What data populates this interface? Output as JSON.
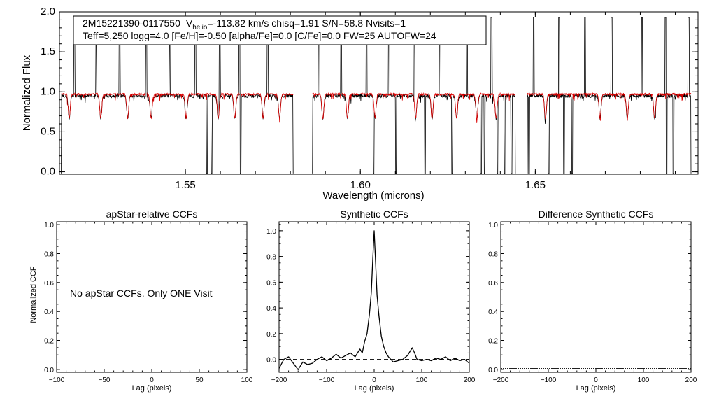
{
  "chart_data": [
    {
      "type": "line",
      "id": "spectrum",
      "annotation": {
        "line1_star": "2M15221390-0117550",
        "line1_vsym": "V",
        "line1_vsub": "helio",
        "line1_rest": "=-113.82 km/s  chisq=1.91  S/N=58.8  Nvisits=1",
        "line2": "Teff=5,250 logg=4.0 [Fe/H]=-0.50 [alpha/Fe]=0.0 [C/Fe]=0.0 FW=25 AUTOFW=24"
      },
      "xlabel": "Wavelength (microns)",
      "ylabel": "Normalized Flux",
      "xlim": [
        1.514,
        1.6965
      ],
      "ylim": [
        -0.03,
        2.0
      ],
      "xticks": [
        1.55,
        1.6,
        1.65
      ],
      "xtick_labels": [
        "1.55",
        "1.60",
        "1.65"
      ],
      "yticks": [
        0.0,
        0.5,
        1.0,
        1.5,
        2.0
      ],
      "ytick_labels": [
        "0.0",
        "0.5",
        "1.0",
        "1.5",
        "2.0"
      ],
      "chips": [
        [
          1.5145,
          1.5808
        ],
        [
          1.5863,
          1.6443
        ],
        [
          1.6477,
          1.6945
        ]
      ],
      "series": [
        {
          "name": "observed",
          "color": "#000000",
          "continuum": 0.95
        },
        {
          "name": "model",
          "color": "#dd0000",
          "continuum": 0.97
        }
      ],
      "spikes_up": [
        1.5183,
        1.5245,
        1.5312,
        1.5388,
        1.5455,
        1.5528,
        1.5598,
        1.5654,
        1.5735,
        1.5882,
        1.5945,
        1.6018,
        1.6082,
        1.6155,
        1.6228,
        1.6305,
        1.6375,
        1.6495,
        1.6568,
        1.6642,
        1.6718,
        1.6805,
        1.6872,
        1.6938
      ],
      "spikes_down": [
        1.5562,
        1.5575,
        1.5658,
        1.6038,
        1.6102,
        1.6185,
        1.6262,
        1.6345,
        1.6355,
        1.6392,
        1.6412,
        1.6432,
        1.6482,
        1.6538,
        1.6582,
        1.6605,
        1.6875,
        1.6895
      ],
      "deep_lines": [
        1.5168,
        1.5258,
        1.5335,
        1.5402,
        1.5502,
        1.5594,
        1.5641,
        1.5722,
        1.5769,
        1.5893,
        1.5963,
        1.6042,
        1.6158,
        1.6205,
        1.6275,
        1.6333,
        1.6388,
        1.6529,
        1.6685,
        1.6763,
        1.6841
      ]
    },
    {
      "type": "line",
      "id": "apstar_ccf",
      "title": "apStar-relative CCFs",
      "xlabel": "Lag (pixels)",
      "ylabel": "Normalized CCF",
      "xlim": [
        -100,
        100
      ],
      "ylim": [
        -0.02,
        1.02
      ],
      "xticks": [
        -100,
        -50,
        0,
        50,
        100
      ],
      "xtick_labels": [
        "−100",
        "−50",
        "0",
        "50",
        "100"
      ],
      "yticks": [
        0.0,
        0.2,
        0.4,
        0.6,
        0.8,
        1.0
      ],
      "ytick_labels": [
        "0.0",
        "0.2",
        "0.4",
        "0.6",
        "0.8",
        "1.0"
      ],
      "message": "No apStar CCFs.  Only ONE Visit"
    },
    {
      "type": "line",
      "id": "synthetic_ccf",
      "title": "Synthetic CCFs",
      "xlabel": "Lag (pixels)",
      "xlim": [
        -200,
        200
      ],
      "ylim": [
        -0.1,
        1.07
      ],
      "xticks": [
        -200,
        -100,
        0,
        100,
        200
      ],
      "xtick_labels": [
        "−200",
        "−100",
        "0",
        "100",
        "200"
      ],
      "yticks": [
        0.0,
        0.2,
        0.4,
        0.6,
        0.8,
        1.0
      ],
      "ytick_labels": [
        "0.0",
        "0.2",
        "0.4",
        "0.6",
        "0.8",
        "1.0"
      ],
      "zero_line": 0.0,
      "peak": {
        "lag": 0,
        "value": 1.0
      },
      "ccf_points": [
        [
          -200,
          -0.07
        ],
        [
          -190,
          0.0
        ],
        [
          -180,
          0.02
        ],
        [
          -170,
          -0.03
        ],
        [
          -160,
          -0.08
        ],
        [
          -150,
          -0.02
        ],
        [
          -140,
          -0.04
        ],
        [
          -130,
          -0.03
        ],
        [
          -120,
          0.0
        ],
        [
          -110,
          0.02
        ],
        [
          -100,
          -0.01
        ],
        [
          -90,
          0.01
        ],
        [
          -80,
          0.04
        ],
        [
          -70,
          0.01
        ],
        [
          -60,
          0.03
        ],
        [
          -50,
          0.05
        ],
        [
          -40,
          0.02
        ],
        [
          -30,
          0.08
        ],
        [
          -25,
          0.05
        ],
        [
          -20,
          0.14
        ],
        [
          -15,
          0.2
        ],
        [
          -10,
          0.35
        ],
        [
          -6,
          0.52
        ],
        [
          -3,
          0.78
        ],
        [
          0,
          1.0
        ],
        [
          3,
          0.76
        ],
        [
          6,
          0.5
        ],
        [
          10,
          0.34
        ],
        [
          15,
          0.18
        ],
        [
          20,
          0.1
        ],
        [
          25,
          0.05
        ],
        [
          30,
          0.02
        ],
        [
          40,
          -0.02
        ],
        [
          50,
          -0.01
        ],
        [
          60,
          0.0
        ],
        [
          70,
          0.03
        ],
        [
          80,
          0.09
        ],
        [
          85,
          0.05
        ],
        [
          90,
          0.0
        ],
        [
          100,
          -0.01
        ],
        [
          110,
          0.0
        ],
        [
          120,
          -0.01
        ],
        [
          130,
          0.01
        ],
        [
          140,
          0.0
        ],
        [
          150,
          0.02
        ],
        [
          160,
          -0.01
        ],
        [
          170,
          0.01
        ],
        [
          180,
          -0.01
        ],
        [
          190,
          0.0
        ],
        [
          200,
          -0.03
        ]
      ]
    },
    {
      "type": "line",
      "id": "difference_ccf",
      "title": "Difference Synthetic CCFs",
      "xlabel": "Lag (pixels)",
      "xlim": [
        -200,
        200
      ],
      "ylim": [
        -0.02,
        1.02
      ],
      "xticks": [
        -200,
        -100,
        0,
        100,
        200
      ],
      "xtick_labels": [
        "−200",
        "−100",
        "0",
        "100",
        "200"
      ],
      "yticks": [
        0.0,
        0.2,
        0.4,
        0.6,
        0.8,
        1.0
      ],
      "ytick_labels": [
        "0.0",
        "0.2",
        "0.4",
        "0.6",
        "0.8",
        "1.0"
      ]
    }
  ]
}
